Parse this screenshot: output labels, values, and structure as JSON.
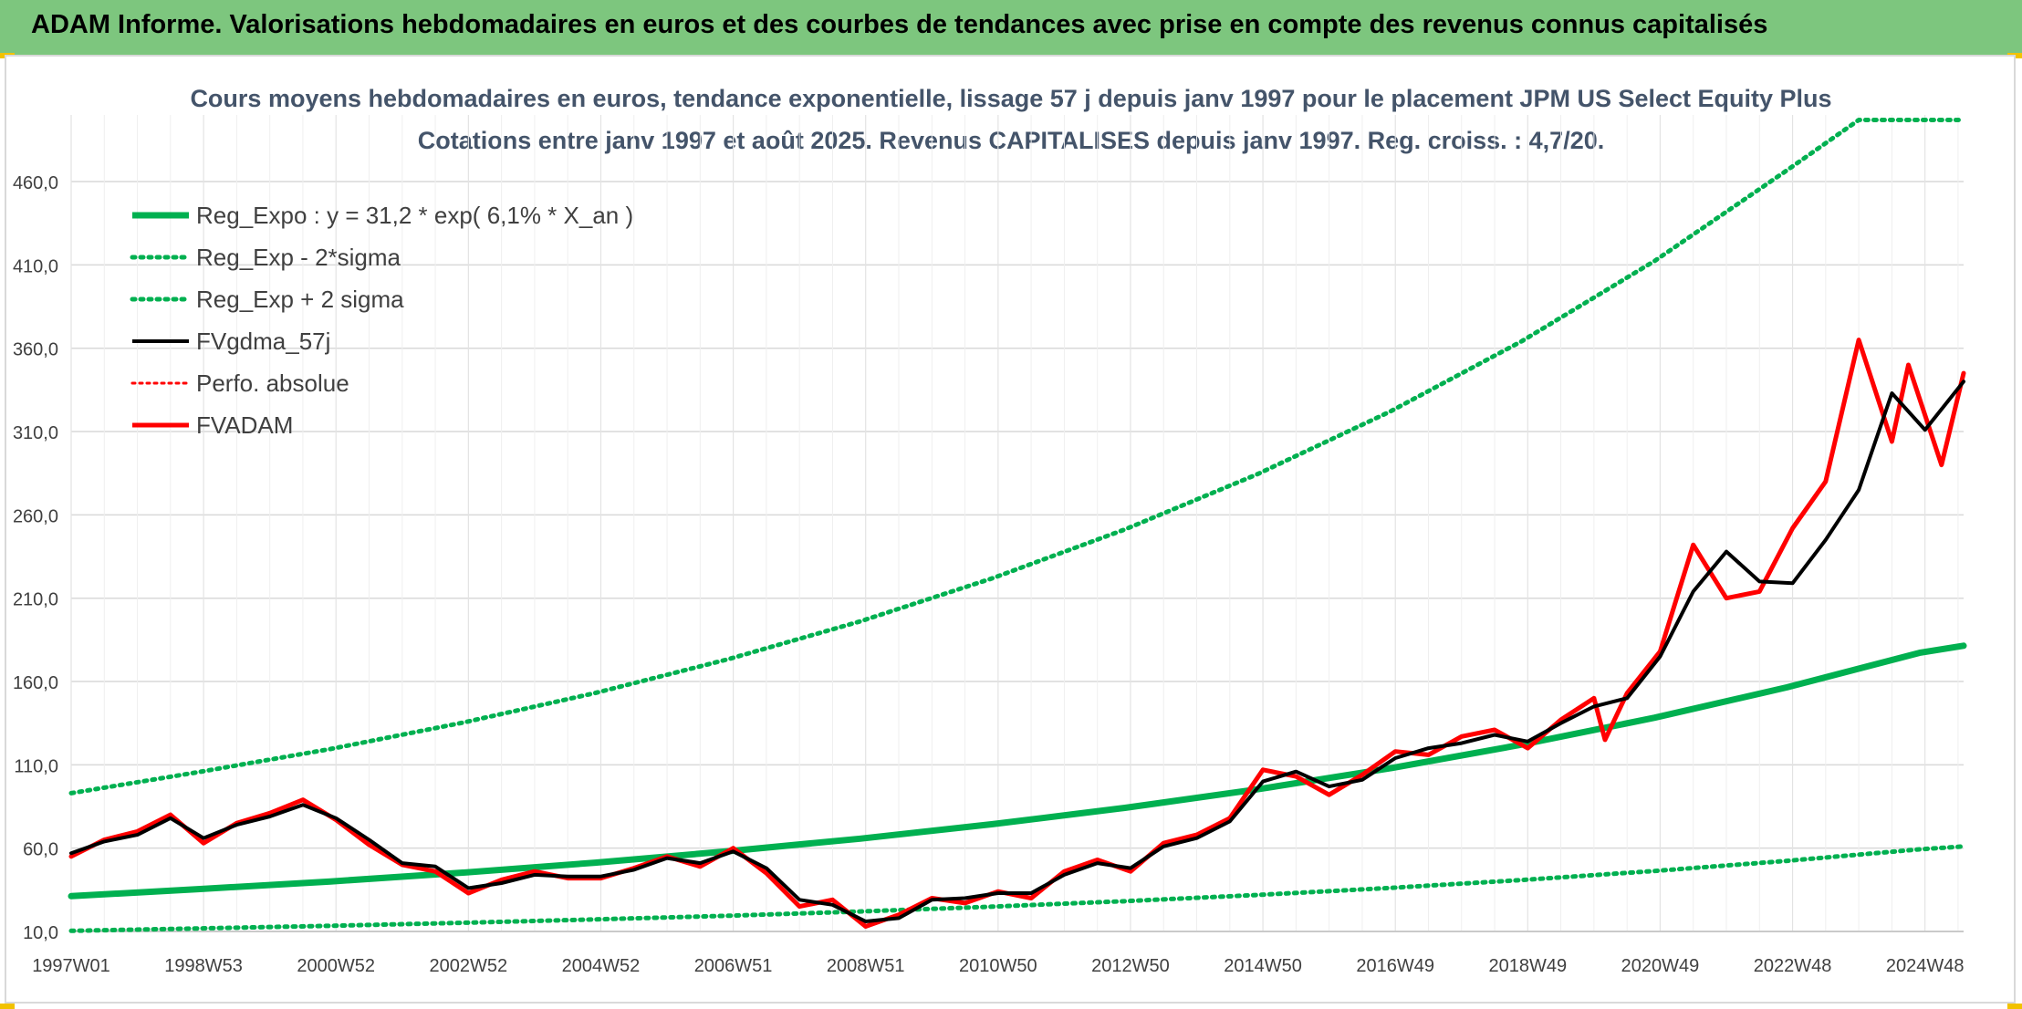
{
  "banner": {
    "title": "ADAM Informe. Valorisations hebdomadaires en euros et des courbes de tendances avec prise en compte des revenus connus capitalisés"
  },
  "chart_data": {
    "type": "line",
    "title_line1": "Cours moyens hebdomadaires en euros, tendance exponentielle, lissage 57 j depuis janv 1997 pour le placement JPM US Select Equity Plus",
    "title_line2": "Cotations entre janv 1997 et août 2025. Revenus CAPITALISES depuis janv 1997. Reg. croiss. : 4,7/20.",
    "x_tick_labels": [
      "1997W01",
      "1998W53",
      "2000W52",
      "2002W52",
      "2004W52",
      "2006W51",
      "2008W51",
      "2010W50",
      "2012W50",
      "2014W50",
      "2016W49",
      "2018W49",
      "2020W49",
      "2022W48",
      "2024W48"
    ],
    "y_tick_labels": [
      "10,0",
      "60,0",
      "110,0",
      "160,0",
      "210,0",
      "260,0",
      "310,0",
      "360,0",
      "410,0",
      "460,0"
    ],
    "ylim": [
      10,
      500
    ],
    "xlim": [
      "1997-01",
      "2025-08"
    ],
    "grid": true,
    "legend_placement": "top-left",
    "colors": {
      "reg_green": "#00b050",
      "black": "#000000",
      "red": "#ff0000"
    },
    "series": [
      {
        "name": "Reg_Expo : y = 31,2 * exp( 6,1% *  X_an )",
        "style": "solid-thick-green",
        "x": [
          "1997-01",
          "1998-12",
          "2000-12",
          "2002-12",
          "2004-12",
          "2006-12",
          "2008-12",
          "2010-12",
          "2012-12",
          "2014-12",
          "2016-12",
          "2018-12",
          "2020-12",
          "2022-12",
          "2024-12",
          "2025-08"
        ],
        "values": [
          31.2,
          35.4,
          40,
          45.3,
          51.3,
          58.1,
          65.7,
          74.4,
          84.2,
          95.3,
          107.9,
          122.2,
          138.3,
          156.5,
          177.2,
          181.5
        ]
      },
      {
        "name": "Reg_Exp - 2*sigma",
        "style": "dotted-green",
        "x": [
          "1997-01",
          "1998-12",
          "2000-12",
          "2002-12",
          "2004-12",
          "2006-12",
          "2008-12",
          "2010-12",
          "2012-12",
          "2014-12",
          "2016-12",
          "2018-12",
          "2020-12",
          "2022-12",
          "2024-12",
          "2025-08"
        ],
        "values": [
          10.4,
          11.8,
          13.4,
          15.2,
          17.2,
          19.4,
          22,
          24.9,
          28.2,
          31.9,
          36.1,
          40.9,
          46.3,
          52.4,
          59.3,
          61
        ]
      },
      {
        "name": "Reg_Exp + 2 sigma",
        "style": "dotted-green",
        "x": [
          "1997-01",
          "1998-12",
          "2000-12",
          "2002-12",
          "2004-12",
          "2006-12",
          "2008-12",
          "2010-12",
          "2012-12",
          "2014-12",
          "2016-12",
          "2018-12",
          "2020-12",
          "2022-12",
          "2024-01",
          "2025-08"
        ],
        "values": [
          93,
          105.6,
          119.5,
          135.3,
          153.1,
          173.3,
          196.1,
          222,
          251.3,
          284.4,
          321.9,
          364.4,
          412.4,
          466.8,
          497,
          497
        ]
      },
      {
        "name": "FVgdma_57j",
        "style": "solid-black",
        "x": [
          "1997-01",
          "1997-07",
          "1998-01",
          "1998-07",
          "1999-01",
          "1999-07",
          "2000-01",
          "2000-07",
          "2001-01",
          "2001-07",
          "2002-01",
          "2002-07",
          "2003-01",
          "2003-07",
          "2004-01",
          "2004-07",
          "2005-01",
          "2005-07",
          "2006-01",
          "2006-07",
          "2007-01",
          "2007-07",
          "2008-01",
          "2008-07",
          "2009-01",
          "2009-07",
          "2010-01",
          "2010-07",
          "2011-01",
          "2011-07",
          "2012-01",
          "2012-07",
          "2013-01",
          "2013-07",
          "2014-01",
          "2014-07",
          "2015-01",
          "2015-07",
          "2016-01",
          "2016-07",
          "2017-01",
          "2017-07",
          "2018-01",
          "2018-07",
          "2019-01",
          "2019-07",
          "2020-01",
          "2020-07",
          "2021-01",
          "2021-07",
          "2022-01",
          "2022-07",
          "2023-01",
          "2023-07",
          "2024-01",
          "2024-07",
          "2025-01",
          "2025-08"
        ],
        "values": [
          57,
          64,
          68,
          78,
          66,
          74,
          79,
          86,
          78,
          65,
          51,
          49,
          36,
          39,
          44,
          43,
          43,
          47,
          54,
          51,
          58,
          48,
          29,
          26,
          16,
          18,
          29,
          30,
          33,
          33,
          44,
          51,
          48,
          61,
          66,
          76,
          100,
          106,
          97,
          101,
          114,
          120,
          123,
          128,
          124,
          135,
          145,
          150,
          175,
          214,
          238,
          220,
          219,
          245,
          275,
          333,
          311,
          340
        ]
      },
      {
        "name": "Perfo. absolue",
        "style": "dotted-red",
        "x": [],
        "values": []
      },
      {
        "name": "FVADAM",
        "style": "solid-thick-red",
        "x": [
          "1997-01",
          "1997-07",
          "1998-01",
          "1998-07",
          "1999-01",
          "1999-07",
          "2000-01",
          "2000-07",
          "2001-01",
          "2001-07",
          "2002-01",
          "2002-07",
          "2003-01",
          "2003-07",
          "2004-01",
          "2004-07",
          "2005-01",
          "2005-07",
          "2006-01",
          "2006-07",
          "2007-01",
          "2007-07",
          "2008-01",
          "2008-07",
          "2009-01",
          "2009-07",
          "2010-01",
          "2010-07",
          "2011-01",
          "2011-07",
          "2012-01",
          "2012-07",
          "2013-01",
          "2013-07",
          "2014-01",
          "2014-07",
          "2015-01",
          "2015-07",
          "2016-01",
          "2016-07",
          "2017-01",
          "2017-07",
          "2018-01",
          "2018-07",
          "2019-01",
          "2019-07",
          "2020-01",
          "2020-03",
          "2020-07",
          "2021-01",
          "2021-07",
          "2022-01",
          "2022-07",
          "2023-01",
          "2023-07",
          "2024-01",
          "2024-07",
          "2024-10",
          "2025-04",
          "2025-08"
        ],
        "values": [
          55,
          65,
          70,
          80,
          63,
          75,
          81,
          89,
          77,
          62,
          50,
          46,
          33,
          41,
          46,
          42,
          42,
          48,
          55,
          49,
          60,
          45,
          25,
          29,
          13,
          20,
          30,
          27,
          34,
          30,
          46,
          53,
          46,
          63,
          68,
          78,
          107,
          103,
          92,
          104,
          118,
          116,
          127,
          131,
          120,
          137,
          150,
          125,
          153,
          178,
          242,
          210,
          214,
          252,
          280,
          365,
          304,
          350,
          290,
          345
        ]
      }
    ]
  }
}
